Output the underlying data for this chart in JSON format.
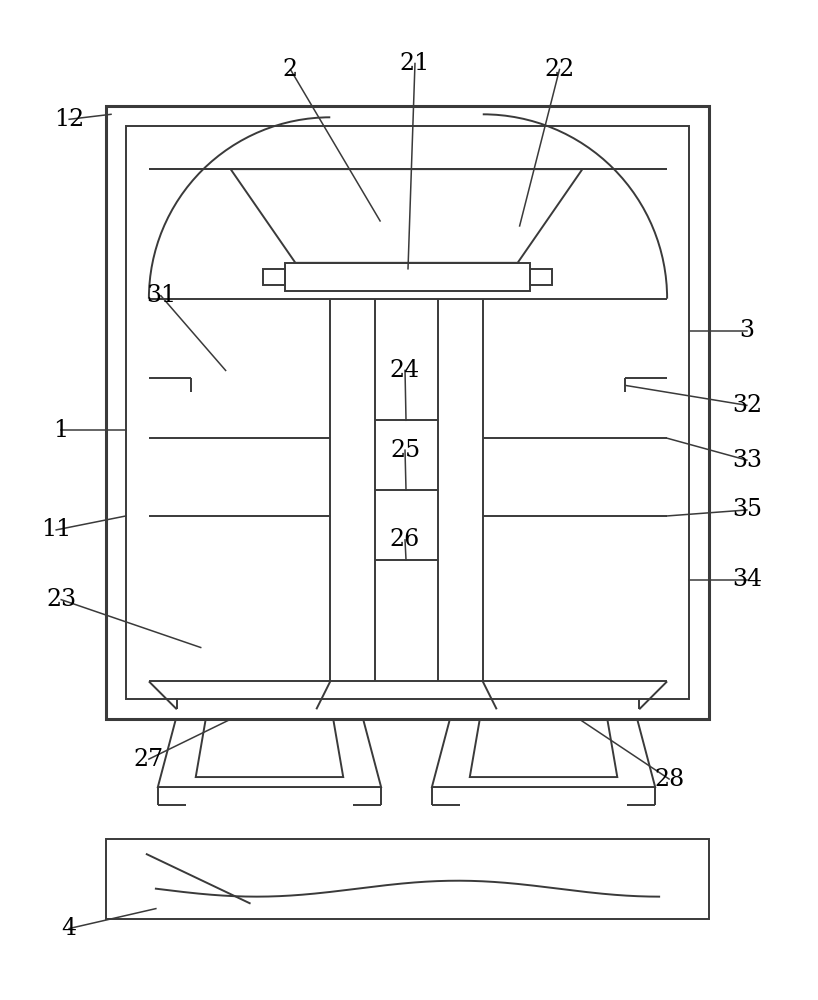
{
  "bg_color": "#ffffff",
  "line_color": "#3a3a3a",
  "lw": 1.4,
  "lw_thick": 2.2,
  "lw_label": 1.1,
  "label_fontsize": 17
}
